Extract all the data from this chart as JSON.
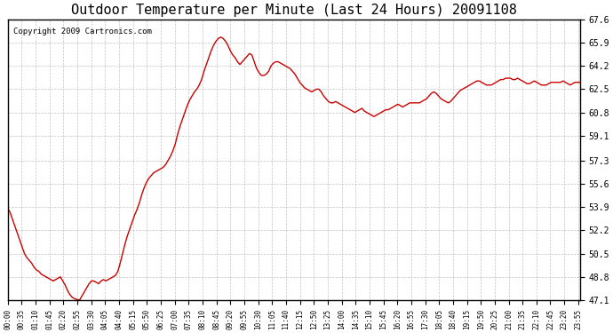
{
  "title": "Outdoor Temperature per Minute (Last 24 Hours) 20091108",
  "copyright_text": "Copyright 2009 Cartronics.com",
  "line_color": "#cc0000",
  "background_color": "#ffffff",
  "plot_bg_color": "#ffffff",
  "grid_color": "#aaaaaa",
  "ylim": [
    47.1,
    67.6
  ],
  "yticks": [
    47.1,
    48.8,
    50.5,
    52.2,
    53.9,
    55.6,
    57.3,
    59.1,
    60.8,
    62.5,
    64.2,
    65.9,
    67.6
  ],
  "xtick_labels": [
    "00:00",
    "00:35",
    "01:10",
    "01:45",
    "02:20",
    "02:55",
    "03:30",
    "04:05",
    "04:40",
    "05:15",
    "05:50",
    "06:25",
    "07:00",
    "07:35",
    "08:10",
    "08:45",
    "09:20",
    "09:55",
    "10:30",
    "11:05",
    "11:40",
    "12:15",
    "12:50",
    "13:25",
    "14:00",
    "14:35",
    "15:10",
    "15:45",
    "16:20",
    "16:55",
    "17:30",
    "18:05",
    "18:40",
    "19:15",
    "19:50",
    "20:25",
    "21:00",
    "21:35",
    "22:10",
    "22:45",
    "23:20",
    "23:55"
  ],
  "temp_profile": [
    53.8,
    53.5,
    53.0,
    52.5,
    52.0,
    51.5,
    51.0,
    50.5,
    50.2,
    50.0,
    49.8,
    49.5,
    49.3,
    49.2,
    49.0,
    48.9,
    48.8,
    48.7,
    48.6,
    48.5,
    48.6,
    48.7,
    48.8,
    48.5,
    48.2,
    47.8,
    47.5,
    47.3,
    47.2,
    47.15,
    47.1,
    47.4,
    47.7,
    48.0,
    48.3,
    48.5,
    48.5,
    48.4,
    48.3,
    48.5,
    48.6,
    48.5,
    48.6,
    48.7,
    48.8,
    48.9,
    49.2,
    49.8,
    50.5,
    51.2,
    51.8,
    52.3,
    52.8,
    53.3,
    53.7,
    54.2,
    54.8,
    55.3,
    55.7,
    56.0,
    56.2,
    56.4,
    56.5,
    56.6,
    56.7,
    56.8,
    57.0,
    57.3,
    57.6,
    58.0,
    58.5,
    59.2,
    59.8,
    60.3,
    60.8,
    61.3,
    61.7,
    62.0,
    62.3,
    62.5,
    62.8,
    63.2,
    63.8,
    64.3,
    64.8,
    65.3,
    65.7,
    66.0,
    66.2,
    66.3,
    66.2,
    66.0,
    65.7,
    65.3,
    65.0,
    64.8,
    64.5,
    64.3,
    64.5,
    64.7,
    64.9,
    65.1,
    65.0,
    64.5,
    64.0,
    63.7,
    63.5,
    63.5,
    63.6,
    63.8,
    64.2,
    64.4,
    64.5,
    64.5,
    64.4,
    64.3,
    64.2,
    64.1,
    64.0,
    63.8,
    63.6,
    63.3,
    63.0,
    62.8,
    62.6,
    62.5,
    62.4,
    62.3,
    62.4,
    62.5,
    62.5,
    62.3,
    62.0,
    61.8,
    61.6,
    61.5,
    61.5,
    61.6,
    61.5,
    61.4,
    61.3,
    61.2,
    61.1,
    61.0,
    60.9,
    60.8,
    60.9,
    61.0,
    61.1,
    60.9,
    60.8,
    60.7,
    60.6,
    60.5,
    60.6,
    60.7,
    60.8,
    60.9,
    61.0,
    61.0,
    61.1,
    61.2,
    61.3,
    61.4,
    61.3,
    61.2,
    61.3,
    61.4,
    61.5,
    61.5,
    61.5,
    61.5,
    61.5,
    61.6,
    61.7,
    61.8,
    62.0,
    62.2,
    62.3,
    62.2,
    62.0,
    61.8,
    61.7,
    61.6,
    61.5,
    61.6,
    61.8,
    62.0,
    62.2,
    62.4,
    62.5,
    62.6,
    62.7,
    62.8,
    62.9,
    63.0,
    63.1,
    63.1,
    63.0,
    62.9,
    62.8,
    62.8,
    62.8,
    62.9,
    63.0,
    63.1,
    63.2,
    63.2,
    63.3,
    63.3,
    63.3,
    63.2,
    63.2,
    63.3,
    63.2,
    63.1,
    63.0,
    62.9,
    62.9,
    63.0,
    63.1,
    63.0,
    62.9,
    62.8,
    62.8,
    62.8,
    62.9,
    63.0,
    63.0,
    63.0,
    63.0,
    63.0,
    63.1,
    63.0,
    62.9,
    62.8,
    62.9,
    63.0,
    63.0,
    63.0
  ]
}
